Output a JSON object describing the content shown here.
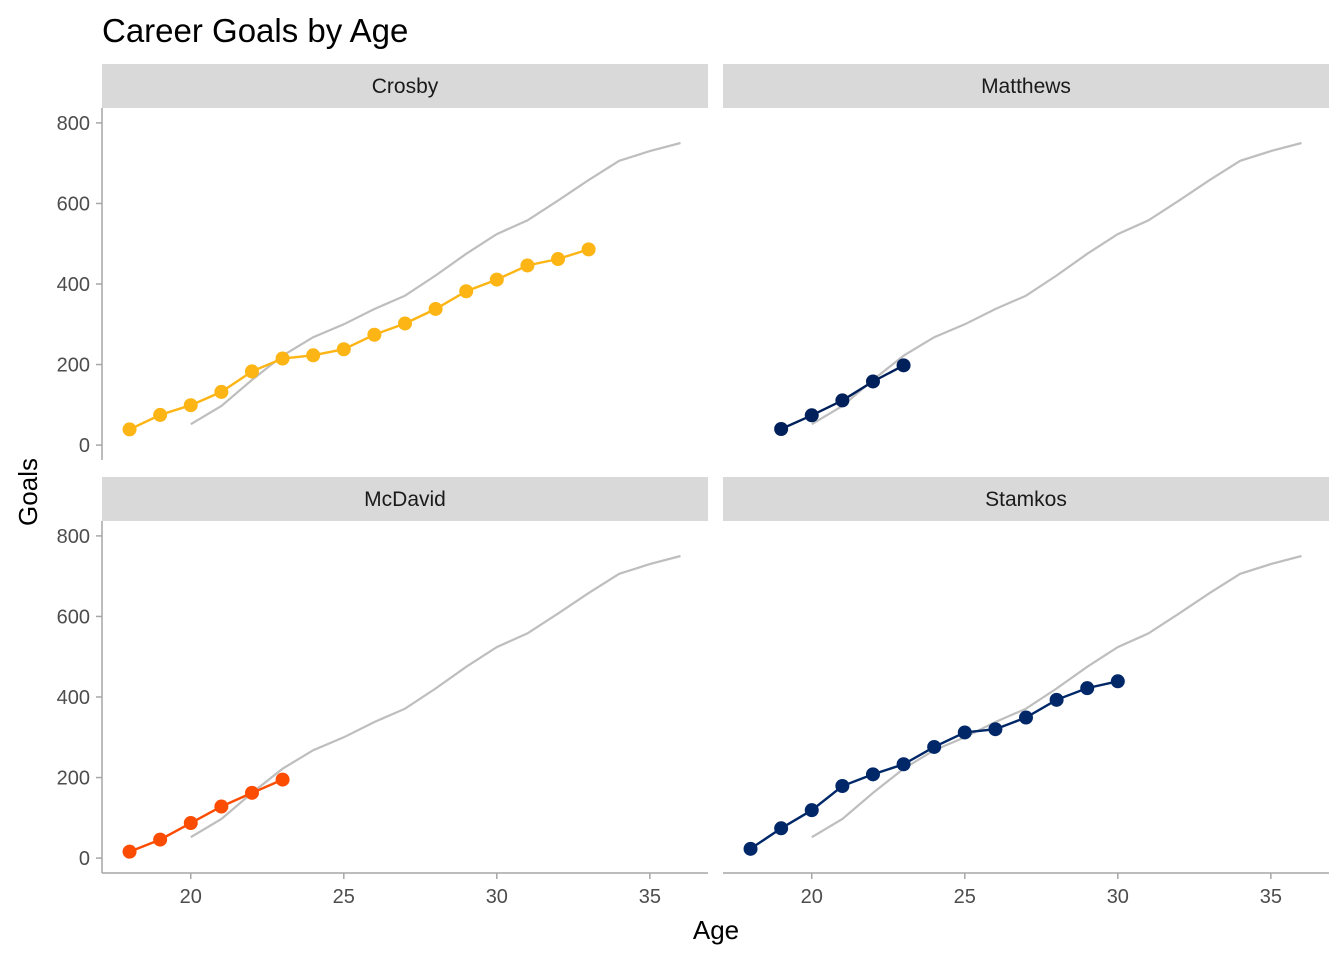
{
  "chart_data": {
    "type": "line",
    "title": "Career Goals by Age",
    "xlabel": "Age",
    "ylabel": "Goals",
    "xlim": [
      17.1,
      36.9
    ],
    "ylim": [
      -37,
      837
    ],
    "x_ticks": [
      20,
      25,
      30,
      35
    ],
    "y_ticks": [
      0,
      200,
      400,
      600,
      800
    ],
    "grid": false,
    "colors": {
      "reference": "#bebebe",
      "strip_background": "#d9d9d9",
      "axis": "#a6a6a6"
    },
    "reference_series": {
      "x": [
        20,
        21,
        22,
        23,
        24,
        25,
        26,
        27,
        28,
        29,
        30,
        31,
        32,
        33,
        34,
        35,
        36
      ],
      "values": [
        52,
        97,
        162,
        222,
        268,
        300,
        338,
        371,
        421,
        475,
        524,
        558,
        607,
        658,
        706,
        730,
        750
      ]
    },
    "panels": [
      {
        "name": "Crosby",
        "color": "#fcb514",
        "x": [
          18,
          19,
          20,
          21,
          22,
          23,
          24,
          25,
          26,
          27,
          28,
          29,
          30,
          31,
          32,
          33
        ],
        "values": [
          39,
          75,
          99,
          132,
          183,
          215,
          223,
          238,
          274,
          302,
          338,
          382,
          411,
          446,
          462,
          486
        ]
      },
      {
        "name": "Matthews",
        "color": "#00205b",
        "x": [
          19,
          20,
          21,
          22,
          23
        ],
        "values": [
          40,
          74,
          111,
          158,
          198
        ]
      },
      {
        "name": "McDavid",
        "color": "#fc4c02",
        "x": [
          18,
          19,
          20,
          21,
          22,
          23
        ],
        "values": [
          16,
          46,
          87,
          128,
          162,
          195
        ]
      },
      {
        "name": "Stamkos",
        "color": "#002868",
        "x": [
          18,
          19,
          20,
          21,
          22,
          23,
          24,
          25,
          26,
          27,
          28,
          29,
          30
        ],
        "values": [
          23,
          74,
          119,
          179,
          208,
          233,
          276,
          312,
          320,
          349,
          393,
          422,
          439
        ]
      }
    ]
  }
}
